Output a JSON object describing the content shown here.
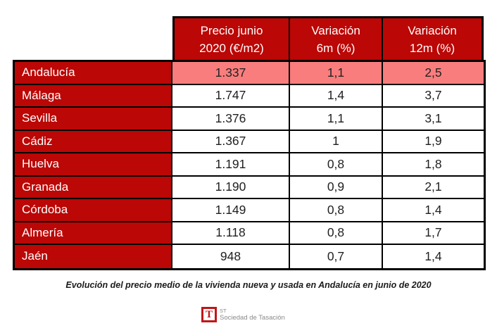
{
  "chart_data": {
    "type": "table",
    "title": "Evolución del precio medio de la vivienda nueva y usada en Andalucía en junio de 2020",
    "columns": [
      "Precio junio 2020 (€/m2)",
      "Variación 6m (%)",
      "Variación 12m (%)"
    ],
    "column_lines": [
      [
        "Precio junio",
        "2020 (€/m2)"
      ],
      [
        "Variación",
        "6m (%)"
      ],
      [
        "Variación",
        "12m (%)"
      ]
    ],
    "rows": [
      {
        "region": "Andalucía",
        "precio": "1.337",
        "var_6m": "1,1",
        "var_12m": "2,5",
        "highlighted": true
      },
      {
        "region": "Málaga",
        "precio": "1.747",
        "var_6m": "1,4",
        "var_12m": "3,7",
        "highlighted": false
      },
      {
        "region": "Sevilla",
        "precio": "1.376",
        "var_6m": "1,1",
        "var_12m": "3,1",
        "highlighted": false
      },
      {
        "region": "Cádiz",
        "precio": "1.367",
        "var_6m": "1",
        "var_12m": "1,9",
        "highlighted": false
      },
      {
        "region": "Huelva",
        "precio": "1.191",
        "var_6m": "0,8",
        "var_12m": "1,8",
        "highlighted": false
      },
      {
        "region": "Granada",
        "precio": "1.190",
        "var_6m": "0,9",
        "var_12m": "2,1",
        "highlighted": false
      },
      {
        "region": "Córdoba",
        "precio": "1.149",
        "var_6m": "0,8",
        "var_12m": "1,4",
        "highlighted": false
      },
      {
        "region": "Almería",
        "precio": "1.118",
        "var_6m": "0,8",
        "var_12m": "1,7",
        "highlighted": false
      },
      {
        "region": "Jaén",
        "precio": "948",
        "var_6m": "0,7",
        "var_12m": "1,4",
        "highlighted": false
      }
    ]
  },
  "footer": {
    "caption": "Evolución del precio medio de la vivienda nueva y usada en Andalucía en junio de 2020",
    "logo": {
      "icon": "sociedad-de-tasacion-logo",
      "mark_letter": "T",
      "top_text": "ST",
      "bottom_text": "Sociedad de Tasación"
    }
  },
  "colors": {
    "dark_red": "#BB0705",
    "highlight_pink": "#F97D7D",
    "border_black": "#000000",
    "value_text": "#1F1F1F",
    "logo_red": "#C0161A",
    "logo_gray": "#8A8A8A"
  }
}
